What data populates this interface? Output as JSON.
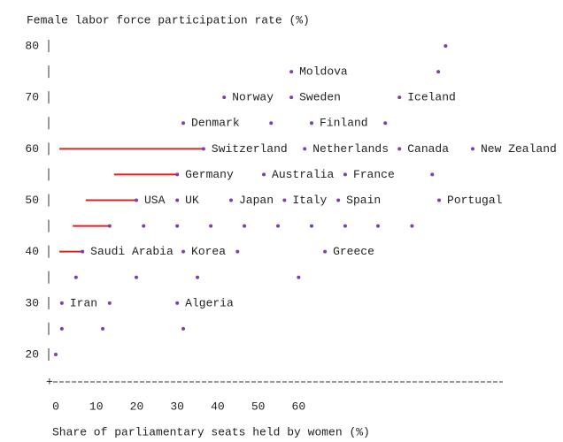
{
  "chart_data": {
    "type": "scatter",
    "title": "Female labor force participation rate (%)",
    "x_label": "Share of parliamentary seats held by women (%)",
    "xlim": [
      0,
      110
    ],
    "ylim": [
      20,
      80
    ],
    "xticks": [
      0,
      10,
      20,
      30,
      40,
      50,
      60
    ],
    "yticks": [
      20,
      30,
      40,
      50,
      60,
      70,
      80
    ],
    "color": "#7b3fb0",
    "x": [
      96.3,
      58.2,
      94.5,
      41.6,
      58.2,
      84.9,
      31.5,
      53.2,
      63.2,
      81.4,
      36.5,
      61.5,
      84.9,
      103,
      30,
      51.4,
      71.5,
      93,
      19.9,
      30,
      43.3,
      56.5,
      69.8,
      94.7,
      13.3,
      21.7,
      30,
      38.3,
      46.6,
      54.9,
      63.2,
      71.5,
      79.6,
      88,
      6.6,
      31.5,
      44.9,
      66.5,
      5,
      19.9,
      35,
      60,
      1.5,
      13.3,
      30,
      1.5,
      11.6,
      31.5,
      0
    ],
    "y": [
      80,
      75,
      75,
      70,
      70,
      70,
      65,
      65,
      65,
      65,
      60,
      60,
      60,
      60,
      55,
      55,
      55,
      55,
      50,
      50,
      50,
      50,
      50,
      50,
      45,
      45,
      45,
      45,
      45,
      45,
      45,
      45,
      45,
      45,
      40,
      40,
      40,
      40,
      35,
      35,
      35,
      35,
      30,
      30,
      30,
      25,
      25,
      25,
      20
    ],
    "labels": [
      null,
      "Moldova",
      null,
      "Norway",
      "Sweden",
      "Iceland",
      "Denmark",
      null,
      "Finland",
      null,
      "Switzerland",
      "Netherlands",
      "Canada",
      "New Zealand",
      "Germany",
      "Australia",
      "France",
      null,
      "USA",
      "UK",
      "Japan",
      "Italy",
      "Spain",
      "Portugal",
      null,
      null,
      null,
      null,
      null,
      null,
      null,
      null,
      null,
      null,
      "Saudi Arabia",
      "Korea",
      null,
      "Greece",
      null,
      null,
      null,
      null,
      "Iran",
      null,
      "Algeria",
      null,
      null,
      null,
      null
    ],
    "segment_color": "#e02020",
    "segments": [
      {
        "y": 60,
        "x": [
          0.9,
          36.5
        ]
      },
      {
        "y": 55,
        "x": [
          14.4,
          30
        ]
      },
      {
        "y": 50,
        "x": [
          7.4,
          19.9
        ]
      },
      {
        "y": 45,
        "x": [
          4.2,
          13.3
        ]
      },
      {
        "y": 40,
        "x": [
          0.9,
          6.6
        ]
      }
    ]
  }
}
